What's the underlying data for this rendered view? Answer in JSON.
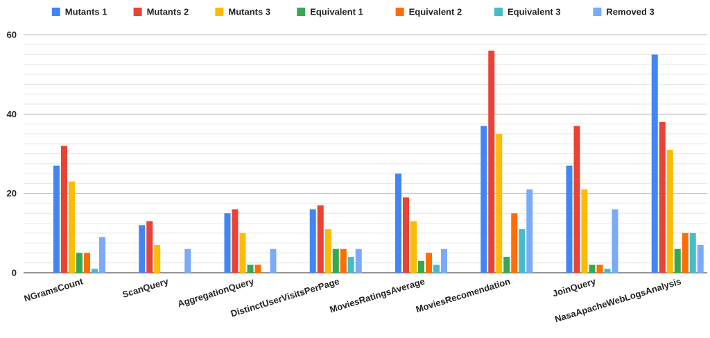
{
  "chart_data": {
    "type": "bar",
    "categories": [
      "NGramsCount",
      "ScanQuery",
      "AggregationQuery",
      "DistinctUserVisitsPerPage",
      "MoviesRatingsAverage",
      "MoviesRecomendation",
      "JoinQuery",
      "NasaApacheWebLogsAnalysis"
    ],
    "series": [
      {
        "name": "Mutants 1",
        "color": "#4285f4",
        "values": [
          27,
          12,
          15,
          16,
          25,
          37,
          27,
          55
        ]
      },
      {
        "name": "Mutants 2",
        "color": "#ea4335",
        "values": [
          32,
          13,
          16,
          17,
          19,
          56,
          37,
          38
        ]
      },
      {
        "name": "Mutants 3",
        "color": "#fbbc04",
        "values": [
          23,
          7,
          10,
          11,
          13,
          35,
          21,
          31
        ]
      },
      {
        "name": "Equivalent 1",
        "color": "#34a853",
        "values": [
          5,
          0,
          2,
          6,
          3,
          4,
          2,
          6
        ]
      },
      {
        "name": "Equivalent 2",
        "color": "#ff6d01",
        "values": [
          5,
          0,
          2,
          6,
          5,
          15,
          2,
          10
        ]
      },
      {
        "name": "Equivalent 3",
        "color": "#46bdc6",
        "values": [
          1,
          0,
          0,
          4,
          2,
          11,
          1,
          10
        ]
      },
      {
        "name": "Removed 3",
        "color": "#7baaf7",
        "values": [
          9,
          6,
          6,
          6,
          6,
          21,
          16,
          7
        ]
      }
    ],
    "yticks": [
      "0",
      "20",
      "40",
      "60"
    ],
    "ylim": [
      0,
      60
    ],
    "minor_grid_step": 2.5,
    "legend_position": "top",
    "grid": true
  }
}
